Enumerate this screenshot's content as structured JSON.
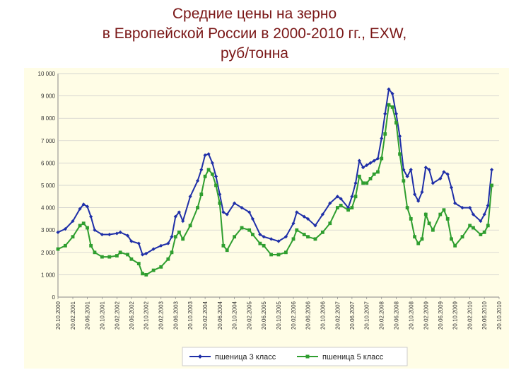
{
  "title_lines": [
    "Средние цены на зерно",
    "в Европейской России в 2000-2010 гг., EXW,",
    "руб/тонна"
  ],
  "chart_data": {
    "type": "line",
    "title": "Средние цены на зерно в Европейской России в 2000-2010 гг., EXW, руб/тонна",
    "ylim": [
      0,
      10000
    ],
    "y_ticks": [
      {
        "value": 0,
        "label": "0"
      },
      {
        "value": 1000,
        "label": "1 000"
      },
      {
        "value": 2000,
        "label": "2 000"
      },
      {
        "value": 3000,
        "label": "3 000"
      },
      {
        "value": 4000,
        "label": "4 000"
      },
      {
        "value": 5000,
        "label": "5 000"
      },
      {
        "value": 6000,
        "label": "6 000"
      },
      {
        "value": 7000,
        "label": "7 000"
      },
      {
        "value": 8000,
        "label": "8 000"
      },
      {
        "value": 9000,
        "label": "9 000"
      },
      {
        "value": 10000,
        "label": "10 000"
      }
    ],
    "x_tick_labels": [
      "20.10.2000",
      "20.02.2001",
      "20.06.2001",
      "20.10.2001",
      "20.02.2002",
      "20.06.2002",
      "20.10.2002",
      "20.02.2003",
      "20.06.2003",
      "20.10.2003",
      "20.02.2004",
      "20.06.2004",
      "20.10.2004",
      "20.02.2005",
      "20.06.2005",
      "20.10.2005",
      "20.02.2006",
      "20.06.2006",
      "20.10.2006",
      "20.02.2007",
      "20.06.2007",
      "20.10.2007",
      "20.02.2008",
      "20.06.2008",
      "20.10.2008",
      "20.02.2009",
      "20.06.2009",
      "20.10.2009",
      "20.02.2010",
      "20.06.2010",
      "20.10.2010"
    ],
    "grid": "horizontal",
    "legend_position": "bottom",
    "series": [
      {
        "name": "пшеница 3 класс",
        "color": "#1f2fa8",
        "marker": "diamond",
        "points": [
          [
            "20.10.2000",
            2900
          ],
          [
            "20.12.2000",
            3050
          ],
          [
            "20.02.2001",
            3400
          ],
          [
            "20.04.2001",
            3950
          ],
          [
            "20.05.2001",
            4150
          ],
          [
            "20.06.2001",
            4050
          ],
          [
            "20.07.2001",
            3600
          ],
          [
            "20.08.2001",
            3000
          ],
          [
            "20.10.2001",
            2800
          ],
          [
            "20.12.2001",
            2800
          ],
          [
            "20.02.2002",
            2850
          ],
          [
            "20.03.2002",
            2900
          ],
          [
            "20.05.2002",
            2750
          ],
          [
            "20.06.2002",
            2500
          ],
          [
            "20.08.2002",
            2400
          ],
          [
            "20.09.2002",
            1900
          ],
          [
            "20.10.2002",
            1950
          ],
          [
            "20.12.2002",
            2150
          ],
          [
            "20.02.2003",
            2300
          ],
          [
            "20.04.2003",
            2400
          ],
          [
            "20.05.2003",
            2700
          ],
          [
            "20.06.2003",
            3600
          ],
          [
            "20.07.2003",
            3800
          ],
          [
            "20.08.2003",
            3400
          ],
          [
            "20.10.2003",
            4500
          ],
          [
            "20.12.2003",
            5200
          ],
          [
            "20.01.2004",
            5700
          ],
          [
            "20.02.2004",
            6350
          ],
          [
            "20.03.2004",
            6400
          ],
          [
            "20.04.2004",
            6000
          ],
          [
            "20.05.2004",
            5400
          ],
          [
            "20.06.2004",
            4600
          ],
          [
            "20.07.2004",
            3800
          ],
          [
            "20.08.2004",
            3700
          ],
          [
            "20.10.2004",
            4200
          ],
          [
            "20.12.2004",
            4000
          ],
          [
            "20.02.2005",
            3800
          ],
          [
            "20.03.2005",
            3500
          ],
          [
            "20.05.2005",
            2800
          ],
          [
            "20.06.2005",
            2700
          ],
          [
            "20.08.2005",
            2600
          ],
          [
            "20.10.2005",
            2500
          ],
          [
            "20.12.2005",
            2700
          ],
          [
            "20.02.2006",
            3300
          ],
          [
            "20.03.2006",
            3800
          ],
          [
            "20.05.2006",
            3600
          ],
          [
            "20.06.2006",
            3500
          ],
          [
            "20.08.2006",
            3200
          ],
          [
            "20.10.2006",
            3700
          ],
          [
            "20.12.2006",
            4200
          ],
          [
            "20.02.2007",
            4500
          ],
          [
            "20.03.2007",
            4400
          ],
          [
            "20.05.2007",
            4000
          ],
          [
            "20.06.2007",
            4500
          ],
          [
            "20.07.2007",
            5100
          ],
          [
            "20.08.2007",
            6100
          ],
          [
            "20.09.2007",
            5800
          ],
          [
            "20.10.2007",
            5900
          ],
          [
            "20.11.2007",
            6000
          ],
          [
            "20.12.2007",
            6100
          ],
          [
            "20.01.2008",
            6200
          ],
          [
            "20.02.2008",
            7100
          ],
          [
            "20.03.2008",
            8200
          ],
          [
            "20.04.2008",
            9300
          ],
          [
            "20.05.2008",
            9100
          ],
          [
            "20.06.2008",
            8200
          ],
          [
            "20.07.2008",
            7200
          ],
          [
            "20.08.2008",
            5700
          ],
          [
            "20.09.2008",
            5400
          ],
          [
            "20.10.2008",
            5700
          ],
          [
            "20.11.2008",
            4600
          ],
          [
            "20.12.2008",
            4300
          ],
          [
            "20.01.2009",
            4700
          ],
          [
            "20.02.2009",
            5800
          ],
          [
            "20.03.2009",
            5700
          ],
          [
            "20.04.2009",
            5100
          ],
          [
            "20.06.2009",
            5300
          ],
          [
            "20.07.2009",
            5600
          ],
          [
            "20.08.2009",
            5500
          ],
          [
            "20.09.2009",
            4900
          ],
          [
            "20.10.2009",
            4200
          ],
          [
            "20.12.2009",
            4000
          ],
          [
            "20.02.2010",
            4000
          ],
          [
            "20.03.2010",
            3700
          ],
          [
            "20.05.2010",
            3400
          ],
          [
            "20.06.2010",
            3700
          ],
          [
            "20.07.2010",
            4100
          ],
          [
            "20.08.2010",
            5700
          ]
        ]
      },
      {
        "name": "пшеница 5 класс",
        "color": "#2f9e2f",
        "marker": "square",
        "points": [
          [
            "20.10.2000",
            2150
          ],
          [
            "20.12.2000",
            2300
          ],
          [
            "20.02.2001",
            2700
          ],
          [
            "20.04.2001",
            3200
          ],
          [
            "20.05.2001",
            3300
          ],
          [
            "20.06.2001",
            3100
          ],
          [
            "20.07.2001",
            2300
          ],
          [
            "20.08.2001",
            2000
          ],
          [
            "20.10.2001",
            1800
          ],
          [
            "20.12.2001",
            1800
          ],
          [
            "20.02.2002",
            1850
          ],
          [
            "20.03.2002",
            2000
          ],
          [
            "20.05.2002",
            1900
          ],
          [
            "20.06.2002",
            1700
          ],
          [
            "20.08.2002",
            1500
          ],
          [
            "20.09.2002",
            1050
          ],
          [
            "20.10.2002",
            1000
          ],
          [
            "20.12.2002",
            1200
          ],
          [
            "20.02.2003",
            1350
          ],
          [
            "20.04.2003",
            1700
          ],
          [
            "20.05.2003",
            2000
          ],
          [
            "20.06.2003",
            2700
          ],
          [
            "20.07.2003",
            2900
          ],
          [
            "20.08.2003",
            2600
          ],
          [
            "20.10.2003",
            3200
          ],
          [
            "20.12.2003",
            4000
          ],
          [
            "20.01.2004",
            4600
          ],
          [
            "20.02.2004",
            5400
          ],
          [
            "20.03.2004",
            5700
          ],
          [
            "20.04.2004",
            5500
          ],
          [
            "20.05.2004",
            5000
          ],
          [
            "20.06.2004",
            4200
          ],
          [
            "20.07.2004",
            2300
          ],
          [
            "20.08.2004",
            2100
          ],
          [
            "20.10.2004",
            2700
          ],
          [
            "20.12.2004",
            3100
          ],
          [
            "20.02.2005",
            3000
          ],
          [
            "20.03.2005",
            2800
          ],
          [
            "20.05.2005",
            2400
          ],
          [
            "20.06.2005",
            2300
          ],
          [
            "20.08.2005",
            1900
          ],
          [
            "20.10.2005",
            1900
          ],
          [
            "20.12.2005",
            2000
          ],
          [
            "20.02.2006",
            2600
          ],
          [
            "20.03.2006",
            3000
          ],
          [
            "20.05.2006",
            2800
          ],
          [
            "20.06.2006",
            2700
          ],
          [
            "20.08.2006",
            2600
          ],
          [
            "20.10.2006",
            2900
          ],
          [
            "20.12.2006",
            3300
          ],
          [
            "20.02.2007",
            4000
          ],
          [
            "20.03.2007",
            4100
          ],
          [
            "20.05.2007",
            3900
          ],
          [
            "20.06.2007",
            4000
          ],
          [
            "20.07.2007",
            4500
          ],
          [
            "20.08.2007",
            5400
          ],
          [
            "20.09.2007",
            5100
          ],
          [
            "20.10.2007",
            5100
          ],
          [
            "20.11.2007",
            5300
          ],
          [
            "20.12.2007",
            5500
          ],
          [
            "20.01.2008",
            5600
          ],
          [
            "20.02.2008",
            6200
          ],
          [
            "20.03.2008",
            7300
          ],
          [
            "20.04.2008",
            8600
          ],
          [
            "20.05.2008",
            8500
          ],
          [
            "20.06.2008",
            7800
          ],
          [
            "20.07.2008",
            6400
          ],
          [
            "20.08.2008",
            5200
          ],
          [
            "20.09.2008",
            4000
          ],
          [
            "20.10.2008",
            3500
          ],
          [
            "20.11.2008",
            2700
          ],
          [
            "20.12.2008",
            2400
          ],
          [
            "20.01.2009",
            2600
          ],
          [
            "20.02.2009",
            3700
          ],
          [
            "20.03.2009",
            3300
          ],
          [
            "20.04.2009",
            3000
          ],
          [
            "20.06.2009",
            3700
          ],
          [
            "20.07.2009",
            3900
          ],
          [
            "20.08.2009",
            3500
          ],
          [
            "20.09.2009",
            2600
          ],
          [
            "20.10.2009",
            2300
          ],
          [
            "20.12.2009",
            2700
          ],
          [
            "20.02.2010",
            3200
          ],
          [
            "20.03.2010",
            3100
          ],
          [
            "20.05.2010",
            2800
          ],
          [
            "20.06.2010",
            2900
          ],
          [
            "20.07.2010",
            3200
          ],
          [
            "20.08.2010",
            5000
          ]
        ]
      }
    ]
  }
}
